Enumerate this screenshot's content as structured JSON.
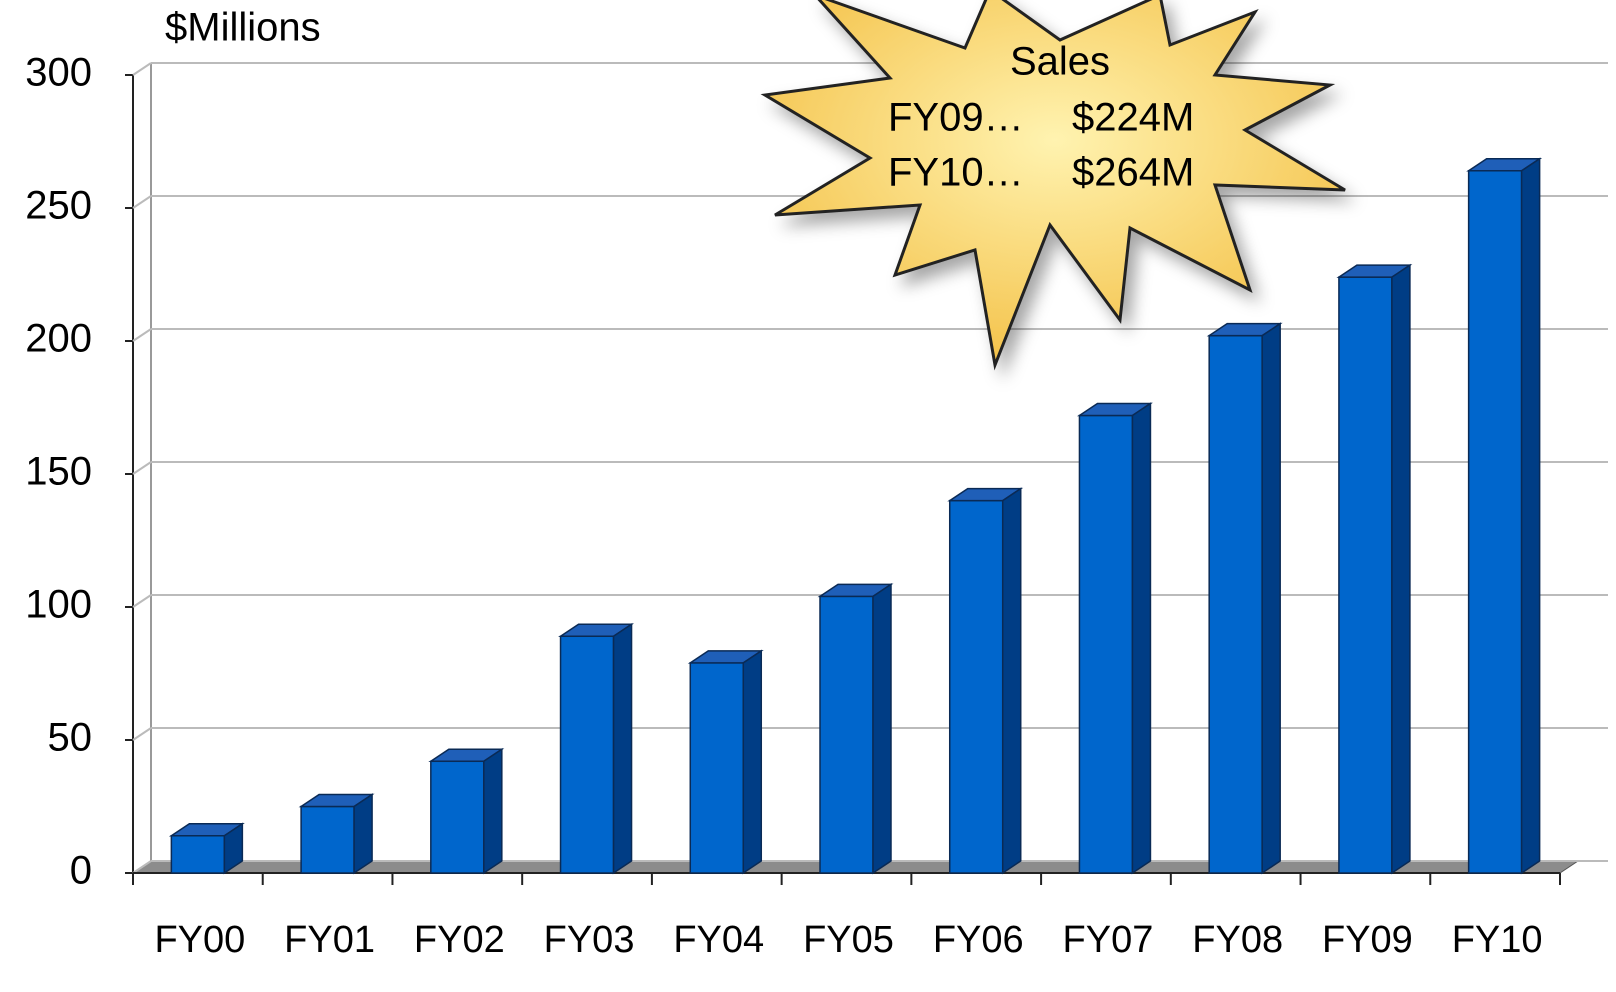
{
  "chart_data": {
    "type": "bar3d",
    "y_axis_label": "$Millions",
    "annotations": [
      "Sales",
      "FY09…",
      "$224M",
      "FY10…",
      "$264M"
    ],
    "categories": [
      "FY00",
      "FY01",
      "FY02",
      "FY03",
      "FY04",
      "FY05",
      "FY06",
      "FY07",
      "FY08",
      "FY09",
      "FY10"
    ],
    "values": [
      14,
      25,
      42,
      89,
      79,
      104,
      140,
      172,
      202,
      224,
      264
    ],
    "color": "#0066cc",
    "ylim": [
      0,
      300
    ],
    "yticks": [
      0,
      50,
      100,
      150,
      200,
      250,
      300
    ],
    "grid": true
  }
}
